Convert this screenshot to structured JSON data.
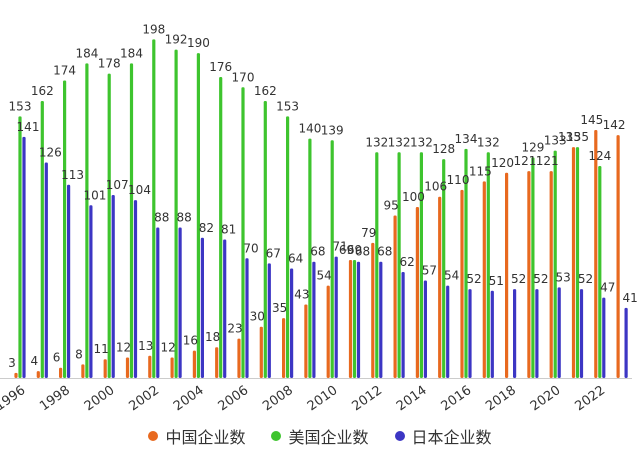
{
  "chart_data": {
    "type": "bar",
    "years": [
      1996,
      1997,
      1998,
      1999,
      2000,
      2001,
      2002,
      2003,
      2004,
      2005,
      2006,
      2007,
      2008,
      2009,
      2010,
      2011,
      2012,
      2013,
      2014,
      2015,
      2016,
      2017,
      2018,
      2019,
      2020,
      2021,
      2022,
      2023
    ],
    "x_tick_labels": [
      "1996",
      "1998",
      "2000",
      "2002",
      "2004",
      "2006",
      "2008",
      "2010",
      "2012",
      "2014",
      "2016",
      "2018",
      "2020",
      "2022"
    ],
    "ylim": [
      0,
      200
    ],
    "series": [
      {
        "name": "中国企业数",
        "color": "#e8691f",
        "values": [
          3,
          4,
          6,
          8,
          11,
          12,
          13,
          12,
          16,
          18,
          23,
          30,
          35,
          43,
          54,
          69,
          79,
          95,
          100,
          106,
          110,
          115,
          120,
          121,
          121,
          135,
          145,
          142
        ]
      },
      {
        "name": "美国企业数",
        "color": "#3ec42e",
        "values": [
          153,
          162,
          174,
          184,
          178,
          184,
          198,
          192,
          190,
          176,
          170,
          162,
          153,
          140,
          139,
          69,
          132,
          132,
          132,
          128,
          134,
          132,
          null,
          129,
          133,
          135,
          124,
          null
        ]
      },
      {
        "name": "日本企业数",
        "color": "#3c36c4",
        "values": [
          141,
          126,
          113,
          101,
          107,
          104,
          88,
          88,
          82,
          81,
          70,
          67,
          64,
          68,
          71,
          68,
          68,
          62,
          57,
          54,
          52,
          51,
          52,
          52,
          53,
          52,
          47,
          41
        ]
      }
    ],
    "title": "",
    "xlabel": "",
    "ylabel": "",
    "legend_position": "bottom"
  }
}
